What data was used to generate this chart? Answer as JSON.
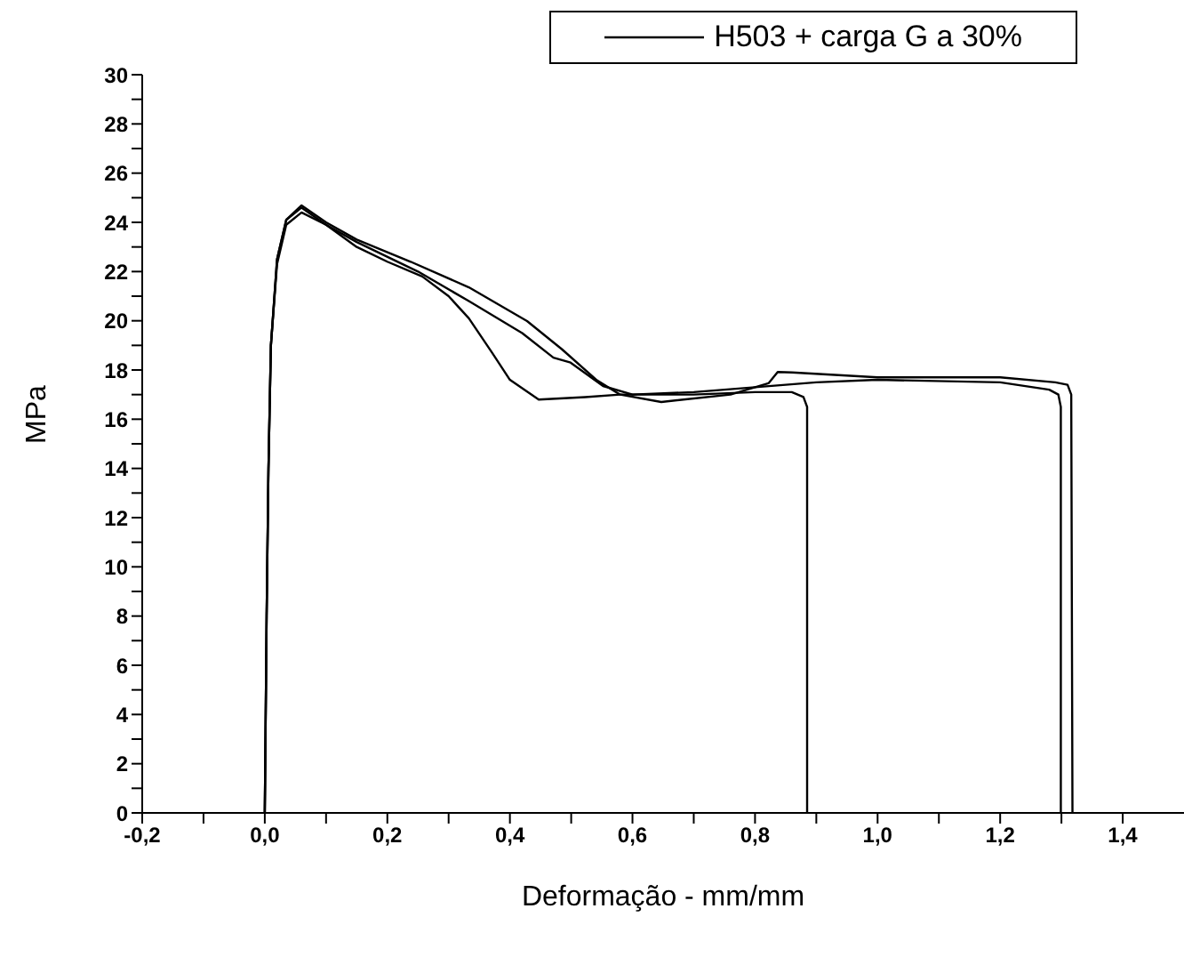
{
  "chart_data": {
    "type": "line",
    "xlabel": "Deformação  - mm/mm",
    "ylabel": "MPa",
    "legend": "top right",
    "xlim": [
      -0.2,
      1.5
    ],
    "ylim": [
      0,
      30
    ],
    "xticks": [
      {
        "value": -0.2,
        "label": "-0,2"
      },
      {
        "value": -0.1,
        "label": null
      },
      {
        "value": 0,
        "label": "0,0"
      },
      {
        "value": 0.1,
        "label": null
      },
      {
        "value": 0.2,
        "label": "0,2"
      },
      {
        "value": 0.3,
        "label": null
      },
      {
        "value": 0.4,
        "label": "0,4"
      },
      {
        "value": 0.5,
        "label": null
      },
      {
        "value": 0.6,
        "label": "0,6"
      },
      {
        "value": 0.7,
        "label": null
      },
      {
        "value": 0.8,
        "label": "0,8"
      },
      {
        "value": 0.9,
        "label": null
      },
      {
        "value": 1.0,
        "label": "1,0"
      },
      {
        "value": 1.1,
        "label": null
      },
      {
        "value": 1.2,
        "label": "1,2"
      },
      {
        "value": 1.3,
        "label": null
      },
      {
        "value": 1.4,
        "label": "1,4"
      }
    ],
    "yticks": [
      0,
      {
        "value": 1,
        "label": null
      },
      2,
      {
        "value": 3,
        "label": null
      },
      4,
      {
        "value": 5,
        "label": null
      },
      6,
      {
        "value": 7,
        "label": null
      },
      8,
      {
        "value": 9,
        "label": null
      },
      10,
      {
        "value": 11,
        "label": null
      },
      12,
      {
        "value": 13,
        "label": null
      },
      14,
      {
        "value": 15,
        "label": null
      },
      16,
      {
        "value": 17,
        "label": null
      },
      18,
      {
        "value": 19,
        "label": null
      },
      20,
      {
        "value": 21,
        "label": null
      },
      22,
      {
        "value": 23,
        "label": null
      },
      24,
      {
        "value": 25,
        "label": null
      },
      26,
      {
        "value": 27,
        "label": null
      },
      28,
      {
        "value": 29,
        "label": null
      },
      30
    ],
    "series": [
      {
        "name": "H503 + carga G a 30%",
        "color": "#000000",
        "x": [
          0,
          0.003,
          0.006,
          0.01,
          0.02,
          0.035,
          0.06,
          0.1,
          0.15,
          0.2,
          0.257,
          0.3,
          0.333,
          0.371,
          0.4,
          0.447,
          0.523,
          0.58,
          0.7,
          0.8,
          0.86,
          0.879,
          0.885,
          0.885
        ],
        "values": [
          0,
          8,
          14,
          19,
          22.5,
          24.1,
          24.6,
          23.9,
          23.0,
          22.4,
          21.8,
          21.0,
          20.1,
          18.7,
          17.6,
          16.8,
          16.9,
          17.0,
          17.0,
          17.1,
          17.1,
          16.9,
          16.5,
          0
        ]
      },
      {
        "color": "#000000",
        "x": [
          0,
          0.003,
          0.006,
          0.01,
          0.02,
          0.035,
          0.06,
          0.1,
          0.15,
          0.25,
          0.333,
          0.42,
          0.471,
          0.499,
          0.552,
          0.6,
          0.7,
          0.8,
          0.9,
          1.0,
          1.2,
          1.28,
          1.295,
          1.299,
          1.299
        ],
        "values": [
          0,
          8,
          14,
          19,
          22.3,
          23.9,
          24.4,
          23.9,
          23.2,
          22.0,
          20.8,
          19.5,
          18.5,
          18.3,
          17.35,
          17.0,
          17.1,
          17.3,
          17.5,
          17.6,
          17.5,
          17.2,
          17.0,
          16.5,
          0
        ]
      },
      {
        "color": "#000000",
        "x": [
          0,
          0.003,
          0.006,
          0.01,
          0.02,
          0.035,
          0.06,
          0.1,
          0.15,
          0.238,
          0.333,
          0.428,
          0.485,
          0.542,
          0.58,
          0.647,
          0.76,
          0.822,
          0.837,
          0.86,
          1.0,
          1.2,
          1.29,
          1.31,
          1.316,
          1.318
        ],
        "values": [
          0,
          8,
          14,
          19,
          22.5,
          24.1,
          24.69,
          24.0,
          23.3,
          22.4,
          21.36,
          19.99,
          18.84,
          17.58,
          17.0,
          16.7,
          17.0,
          17.46,
          17.92,
          17.9,
          17.7,
          17.7,
          17.5,
          17.4,
          17.0,
          0
        ]
      }
    ]
  }
}
